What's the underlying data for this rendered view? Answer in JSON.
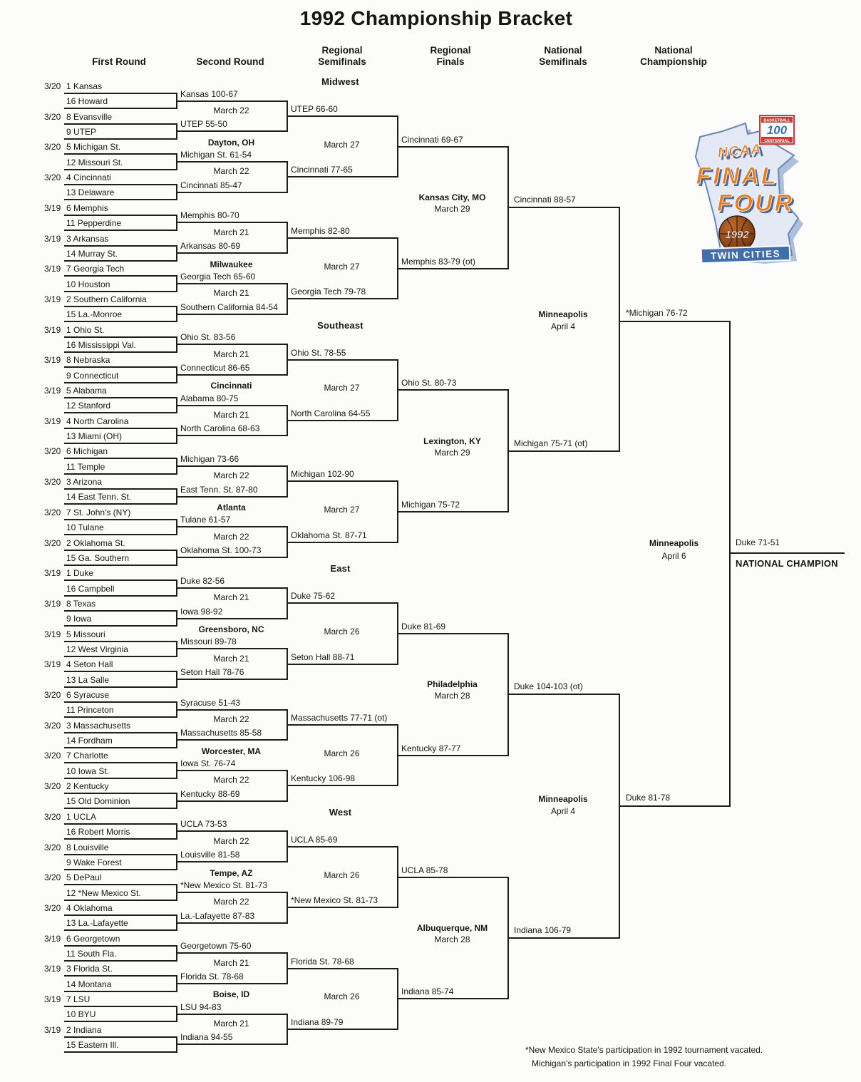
{
  "title": "1992 Championship Bracket",
  "column_headers": [
    "First Round",
    "Second Round",
    "Regional\nSemifinals",
    "Regional\nFinals",
    "National\nSemifinals",
    "National\nChampionship"
  ],
  "regions": [
    {
      "name": "Midwest",
      "teams": [
        {
          "date": "3/20",
          "label": "1 Kansas"
        },
        {
          "label": "16 Howard"
        },
        {
          "date": "3/20",
          "label": "8 Evansville"
        },
        {
          "label": "9 UTEP"
        },
        {
          "date": "3/20",
          "label": "5 Michigan St."
        },
        {
          "label": "12 Missouri St."
        },
        {
          "date": "3/20",
          "label": "4 Cincinnati"
        },
        {
          "label": "13 Delaware"
        },
        {
          "date": "3/19",
          "label": "6 Memphis"
        },
        {
          "label": "11 Pepperdine"
        },
        {
          "date": "3/19",
          "label": "3 Arkansas"
        },
        {
          "label": "14 Murray St."
        },
        {
          "date": "3/19",
          "label": "7 Georgia Tech"
        },
        {
          "label": "10 Houston"
        },
        {
          "date": "3/19",
          "label": "2 Southern California"
        },
        {
          "label": "15 La.-Monroe"
        }
      ],
      "round2": [
        "Kansas 100-67",
        "UTEP 55-50",
        "Michigan St. 61-54",
        "Cincinnati 85-47",
        "Memphis 80-70",
        "Arkansas 80-69",
        "Georgia Tech 65-60",
        "Southern California 84-54"
      ],
      "round2_dates": [
        "March 22",
        "March 22",
        "March 21",
        "March 21"
      ],
      "round1_sites": [
        "Dayton, OH",
        "Milwaukee"
      ],
      "semis": [
        "UTEP 66-60",
        "Cincinnati 77-65",
        "Memphis 82-80",
        "Georgia Tech 79-78"
      ],
      "semi_dates": [
        "March 27",
        "March 27"
      ],
      "finals": [
        "Cincinnati 69-67",
        "Memphis 83-79 (ot)"
      ],
      "final_site": {
        "city": "Kansas City, MO",
        "date": "March 29"
      },
      "champion": "Cincinnati 88-57"
    },
    {
      "name": "Southeast",
      "teams": [
        {
          "date": "3/19",
          "label": "1 Ohio St."
        },
        {
          "label": "16 Mississippi Val."
        },
        {
          "date": "3/19",
          "label": "8 Nebraska"
        },
        {
          "label": "9 Connecticut"
        },
        {
          "date": "3/19",
          "label": "5 Alabama"
        },
        {
          "label": "12 Stanford"
        },
        {
          "date": "3/19",
          "label": "4 North Carolina"
        },
        {
          "label": "13 Miami (OH)"
        },
        {
          "date": "3/20",
          "label": "6 Michigan"
        },
        {
          "label": "11 Temple"
        },
        {
          "date": "3/20",
          "label": "3 Arizona"
        },
        {
          "label": "14 East Tenn. St."
        },
        {
          "date": "3/20",
          "label": "7 St. John's (NY)"
        },
        {
          "label": "10 Tulane"
        },
        {
          "date": "3/20",
          "label": "2 Oklahoma St."
        },
        {
          "label": "15 Ga. Southern"
        }
      ],
      "round2": [
        "Ohio St. 83-56",
        "Connecticut 86-65",
        "Alabama 80-75",
        "North Carolina 68-63",
        "Michigan 73-66",
        "East Tenn. St. 87-80",
        "Tulane 61-57",
        "Oklahoma St. 100-73"
      ],
      "round2_dates": [
        "March 21",
        "March 21",
        "March 22",
        "March 22"
      ],
      "round1_sites": [
        "Cincinnati",
        "Atlanta"
      ],
      "semis": [
        "Ohio St. 78-55",
        "North Carolina 64-55",
        "Michigan 102-90",
        "Oklahoma St. 87-71"
      ],
      "semi_dates": [
        "March 27",
        "March 27"
      ],
      "finals": [
        "Ohio St. 80-73",
        "Michigan 75-72"
      ],
      "final_site": {
        "city": "Lexington, KY",
        "date": "March 29"
      },
      "champion": "Michigan 75-71 (ot)"
    },
    {
      "name": "East",
      "teams": [
        {
          "date": "3/19",
          "label": "1 Duke"
        },
        {
          "label": "16 Campbell"
        },
        {
          "date": "3/19",
          "label": "8 Texas"
        },
        {
          "label": "9 Iowa"
        },
        {
          "date": "3/19",
          "label": "5 Missouri"
        },
        {
          "label": "12 West Virginia"
        },
        {
          "date": "3/19",
          "label": "4 Seton Hall"
        },
        {
          "label": "13 La Salle"
        },
        {
          "date": "3/20",
          "label": "6 Syracuse"
        },
        {
          "label": "11 Princeton"
        },
        {
          "date": "3/20",
          "label": "3 Massachusetts"
        },
        {
          "label": "14 Fordham"
        },
        {
          "date": "3/20",
          "label": "7 Charlotte"
        },
        {
          "label": "10 Iowa St."
        },
        {
          "date": "3/20",
          "label": "2 Kentucky"
        },
        {
          "label": "15 Old Dominion"
        }
      ],
      "round2": [
        "Duke 82-56",
        "Iowa 98-92",
        "Missouri 89-78",
        "Seton Hall 78-76",
        "Syracuse 51-43",
        "Massachusetts 85-58",
        "Iowa St. 76-74",
        "Kentucky 88-69"
      ],
      "round2_dates": [
        "March 21",
        "March 21",
        "March 22",
        "March 22"
      ],
      "round1_sites": [
        "Greensboro, NC",
        "Worcester, MA"
      ],
      "semis": [
        "Duke 75-62",
        "Seton Hall 88-71",
        "Massachusetts 77-71 (ot)",
        "Kentucky 106-98"
      ],
      "semi_dates": [
        "March 26",
        "March 26"
      ],
      "finals": [
        "Duke 81-69",
        "Kentucky 87-77"
      ],
      "final_site": {
        "city": "Philadelphia",
        "date": "March 28"
      },
      "champion": "Duke 104-103 (ot)"
    },
    {
      "name": "West",
      "teams": [
        {
          "date": "3/20",
          "label": "1 UCLA"
        },
        {
          "label": "16 Robert Morris"
        },
        {
          "date": "3/20",
          "label": "8 Louisville"
        },
        {
          "label": "9 Wake Forest"
        },
        {
          "date": "3/20",
          "label": "5 DePaul"
        },
        {
          "label": "12 *New Mexico St."
        },
        {
          "date": "3/20",
          "label": "4 Oklahoma"
        },
        {
          "label": "13 La.-Lafayette"
        },
        {
          "date": "3/19",
          "label": "6 Georgetown"
        },
        {
          "label": "11 South Fla."
        },
        {
          "date": "3/19",
          "label": "3 Florida St."
        },
        {
          "label": "14 Montana"
        },
        {
          "date": "3/19",
          "label": "7 LSU"
        },
        {
          "label": "10 BYU"
        },
        {
          "date": "3/19",
          "label": "2 Indiana"
        },
        {
          "label": "15 Eastern Ill."
        }
      ],
      "round2": [
        "UCLA 73-53",
        "Louisville 81-58",
        "*New Mexico St. 81-73",
        "La.-Lafayette 87-83",
        "Georgetown 75-60",
        "Florida St. 78-68",
        "LSU 94-83",
        "Indiana 94-55"
      ],
      "round2_dates": [
        "March 22",
        "March 22",
        "March 21",
        "March 21"
      ],
      "round1_sites": [
        "Tempe, AZ",
        "Boise, ID"
      ],
      "semis": [
        "UCLA 85-69",
        "*New Mexico St. 81-73",
        "Florida St. 78-68",
        "Indiana 89-79"
      ],
      "semi_dates": [
        "March 26",
        "March 26"
      ],
      "finals": [
        "UCLA 85-78",
        "Indiana 85-74"
      ],
      "final_site": {
        "city": "Albuquerque, NM",
        "date": "March 28"
      },
      "champion": "Indiana 106-79"
    }
  ],
  "national": {
    "semifinals": [
      {
        "site_city": "Minneapolis",
        "site_date": "April 4",
        "result": "*Michigan 76-72"
      },
      {
        "site_city": "Minneapolis",
        "site_date": "April 4",
        "result": "Duke 81-78"
      }
    ],
    "championship": {
      "site_city": "Minneapolis",
      "site_date": "April 6",
      "result": "Duke 71-51",
      "label": "NATIONAL CHAMPION"
    }
  },
  "footnotes": [
    "*New Mexico State's participation in 1992 tournament vacated.",
    "Michigan's participation in 1992 Final Four vacated."
  ],
  "logo": {
    "ncaa": "NCAA",
    "final": "FINAL",
    "four": "FOUR",
    "year": "1992",
    "banner": "TWIN CITIES",
    "badge_top": "BASKETBALL",
    "badge_num": "100",
    "badge_bottom": "CENTENNIAL",
    "colors": {
      "orange": "#ef7c1c",
      "blue": "#3f6fae",
      "light_blue": "#e3e9f5",
      "ball_brown": "#8a4516",
      "red": "#cf3a30"
    }
  }
}
